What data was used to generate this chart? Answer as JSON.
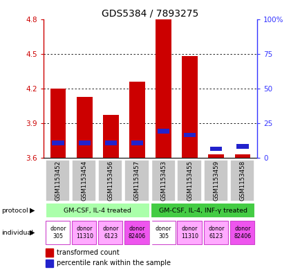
{
  "title": "GDS5384 / 7893275",
  "samples": [
    "GSM1153452",
    "GSM1153454",
    "GSM1153456",
    "GSM1153457",
    "GSM1153453",
    "GSM1153455",
    "GSM1153459",
    "GSM1153458"
  ],
  "red_values": [
    4.2,
    4.13,
    3.97,
    4.26,
    4.8,
    4.48,
    3.63,
    3.63
  ],
  "blue_values": [
    3.73,
    3.73,
    3.73,
    3.73,
    3.83,
    3.8,
    3.68,
    3.7
  ],
  "blue_bar_height": 0.04,
  "base": 3.6,
  "ylim": [
    3.6,
    4.8
  ],
  "yticks_left": [
    3.6,
    3.9,
    4.2,
    4.5,
    4.8
  ],
  "yticks_right_vals": [
    0,
    25,
    50,
    75,
    100
  ],
  "yticks_right_labels": [
    "0",
    "25",
    "50",
    "75",
    "100%"
  ],
  "left_color": "#cc0000",
  "right_color": "#3333ff",
  "bar_width": 0.6,
  "protocol_groups": [
    {
      "label": "GM-CSF, IL-4 treated",
      "start": 0,
      "end": 3,
      "color": "#aaffaa"
    },
    {
      "label": "GM-CSF, IL-4, INF-γ treated",
      "start": 4,
      "end": 7,
      "color": "#44cc44"
    }
  ],
  "indiv_colors": [
    "#ffffff",
    "#ffaaff",
    "#ffaaff",
    "#ee55ee",
    "#ffffff",
    "#ffaaff",
    "#ffaaff",
    "#ee55ee"
  ],
  "indiv_labels": [
    "donor\n305",
    "donor\n11310",
    "donor\n6123",
    "donor\n82406",
    "donor\n305",
    "donor\n11310",
    "donor\n6123",
    "donor\n82406"
  ],
  "gray_color": "#c8c8c8",
  "sep_color": "#ffffff"
}
